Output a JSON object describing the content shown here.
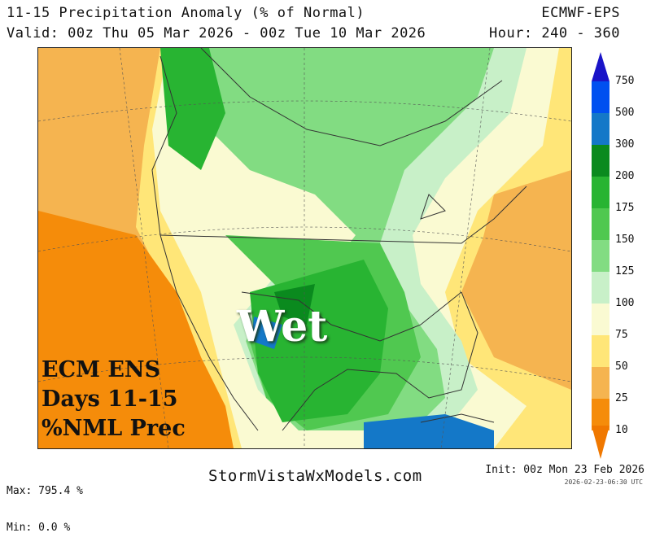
{
  "header": {
    "title": "11-15 Precipitation Anomaly (% of Normal)",
    "valid": "Valid: 00z Thu 05 Mar 2026 - 00z Tue 10 Mar 2026",
    "model": "ECMWF-EPS",
    "hours": "Hour: 240 - 360"
  },
  "map": {
    "label_lines": [
      "ECM ENS",
      "Days 11-15",
      "%NML Prec"
    ],
    "annotation": "Wet"
  },
  "legend": {
    "levels": [
      "750",
      "500",
      "300",
      "200",
      "175",
      "150",
      "125",
      "100",
      "75",
      "50",
      "25",
      "10"
    ],
    "colors": [
      "#1a14c8",
      "#0050f0",
      "#1478c8",
      "#0a8a1e",
      "#28b432",
      "#50c850",
      "#82dc82",
      "#c8f0c8",
      "#fafad2",
      "#ffe678",
      "#f5b450",
      "#f58c0a",
      "#f07800"
    ]
  },
  "footer": {
    "max": "Max: 795.4 %",
    "min": "Min: 0.0 %",
    "site": "StormVistaWxModels.com",
    "init": "Init: 00z Mon 23 Feb 2026",
    "stamp": "2026-02-23-06:30 UTC"
  }
}
